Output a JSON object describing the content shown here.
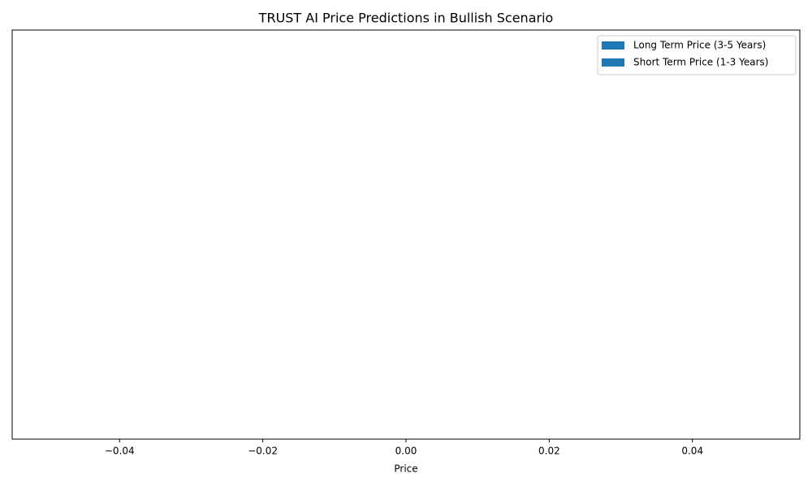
{
  "chart_data": {
    "type": "bar",
    "orientation": "horizontal",
    "title": "TRUST AI Price Predictions in Bullish Scenario",
    "x_label": "Price",
    "categories": [],
    "series": [
      {
        "name": "Long Term Price (3-5 Years)",
        "color": "#1f77b4",
        "values": []
      },
      {
        "name": "Short Term Price (1-3 Years)",
        "color": "#1f77b4",
        "values": []
      }
    ],
    "xlim": [
      -0.055,
      0.055
    ],
    "xticks": [
      {
        "value": -0.04,
        "label": "−0.04"
      },
      {
        "value": -0.02,
        "label": "−0.02"
      },
      {
        "value": 0,
        "label": "0.00"
      },
      {
        "value": 0.02,
        "label": "0.02"
      },
      {
        "value": 0.04,
        "label": "0.04"
      }
    ],
    "grid": false,
    "legend_position": "upper right"
  }
}
